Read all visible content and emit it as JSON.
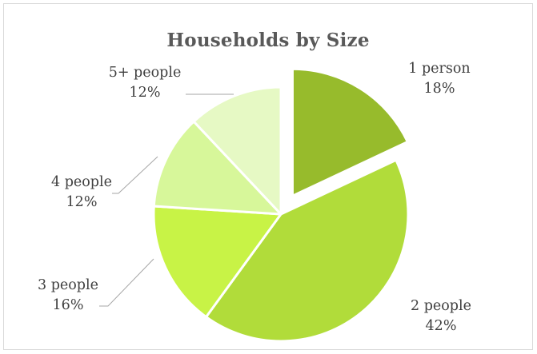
{
  "chart_data": {
    "type": "pie",
    "title": "Households by Size",
    "categories": [
      "1 person",
      "2 people",
      "3 people",
      "4 people",
      "5+ people"
    ],
    "values": [
      18,
      42,
      16,
      12,
      12
    ],
    "percent_labels": [
      "18%",
      "42%",
      "16%",
      "12%",
      "12%"
    ],
    "colors": [
      "#97bb2c",
      "#b1dc3a",
      "#c8f346",
      "#d7f79a",
      "#e6f9c4"
    ],
    "exploded": [
      "1 person"
    ],
    "legend": "none",
    "data_labels": "category-and-percent"
  }
}
